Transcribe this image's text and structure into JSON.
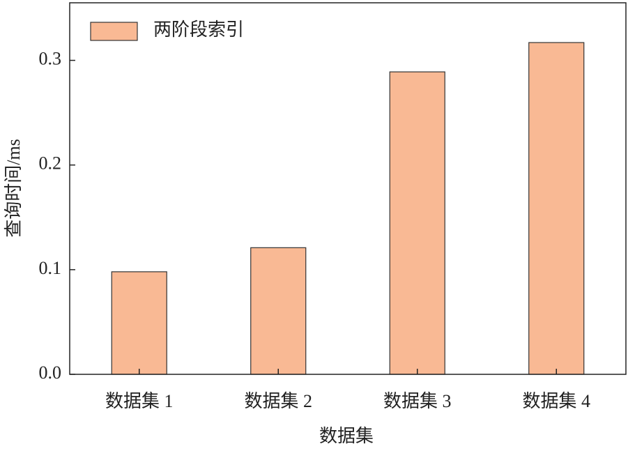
{
  "chart_data": {
    "type": "bar",
    "xlabel": "数据集",
    "ylabel": "查询时间/ms",
    "categories": [
      "数据集 1",
      "数据集 2",
      "数据集 3",
      "数据集 4"
    ],
    "series": [
      {
        "name": "两阶段索引",
        "color": "#f9b994",
        "values": [
          0.098,
          0.121,
          0.289,
          0.317
        ]
      }
    ],
    "ylim": [
      0,
      0.355
    ],
    "yticks": [
      {
        "value": 0,
        "label": "0.0"
      },
      0.1,
      0.2,
      0.3
    ],
    "legend": "upper-left",
    "grid": false
  }
}
